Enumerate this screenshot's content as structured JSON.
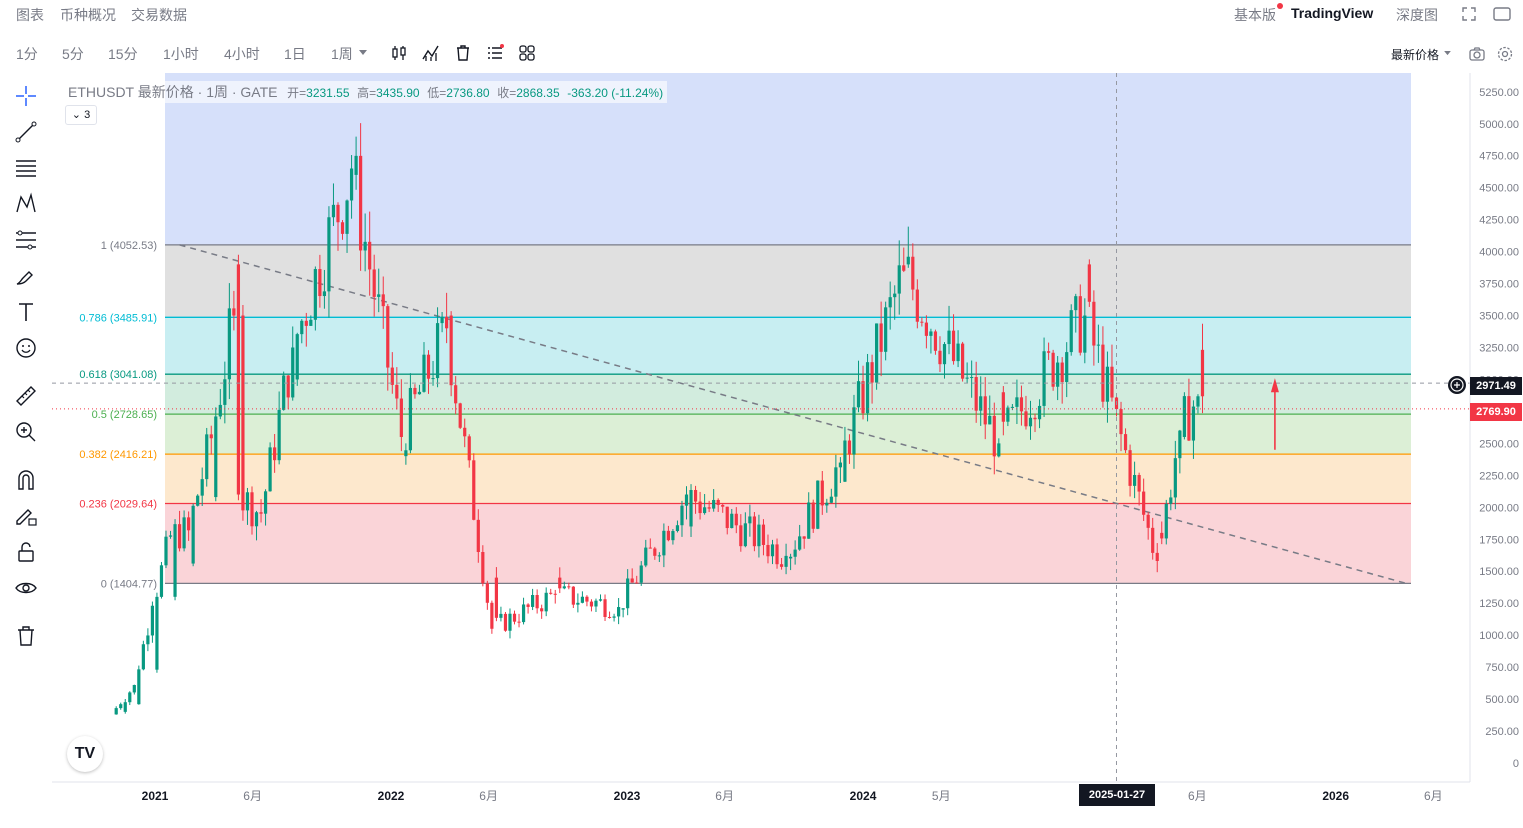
{
  "top_tabs": [
    {
      "label": "图表",
      "active": true
    },
    {
      "label": "币种概况",
      "active": false
    },
    {
      "label": "交易数据",
      "active": false
    }
  ],
  "top_right": {
    "basic": "基本版",
    "brand": "TradingView",
    "depth": "深度图"
  },
  "intervals": [
    {
      "label": "1分",
      "active": false
    },
    {
      "label": "5分",
      "active": false
    },
    {
      "label": "15分",
      "active": false
    },
    {
      "label": "1小时",
      "active": false
    },
    {
      "label": "4小时",
      "active": false
    },
    {
      "label": "1日",
      "active": false
    },
    {
      "label": "1周",
      "active": true
    }
  ],
  "price_mode": "最新价格",
  "legend": {
    "title": "ETHUSDT 最新价格 · 1周 · GATE",
    "open_label": "开=",
    "open": "3231.55",
    "high_label": "高=",
    "high": "3435.90",
    "low_label": "低=",
    "low": "2736.80",
    "close_label": "收=",
    "close": "2868.35",
    "change": "-363.20 (-11.24%)",
    "collapse_count": "3"
  },
  "crosshair": {
    "price_label": "2971.49",
    "date_label": "2025-01-27"
  },
  "last_price_label": "2769.90",
  "logo_text": "TV",
  "colors": {
    "up": "#089981",
    "down": "#f23645",
    "text_muted": "#787b86"
  },
  "chart_data": {
    "type": "candlestick",
    "symbol": "ETHUSDT",
    "interval": "1周",
    "exchange": "GATE",
    "y_ticks": [
      0,
      250,
      500,
      750,
      1000,
      1250,
      1500,
      1750,
      2000,
      2250,
      2500,
      2750,
      3000,
      3250,
      3500,
      3750,
      4000,
      4250,
      4500,
      4750,
      5000,
      5250
    ],
    "y_tick_labels": [
      "0",
      "250.00",
      "500.00",
      "750.00",
      "1000.00",
      "1250.00",
      "1500.00",
      "1750.00",
      "2000.00",
      "2250.00",
      "2500.00",
      "2750.00",
      "3000.00",
      "3250.00",
      "3500.00",
      "3750.00",
      "4000.00",
      "4250.00",
      "4500.00",
      "4750.00",
      "5000.00",
      "5250.00"
    ],
    "x_ticks": [
      {
        "label": "2021",
        "date": "2021-01-01"
      },
      {
        "label": "6月",
        "date": "2021-06-01"
      },
      {
        "label": "2022",
        "date": "2022-01-01"
      },
      {
        "label": "6月",
        "date": "2022-06-01"
      },
      {
        "label": "2023",
        "date": "2023-01-01"
      },
      {
        "label": "6月",
        "date": "2023-06-01"
      },
      {
        "label": "2024",
        "date": "2024-01-01"
      },
      {
        "label": "5月",
        "date": "2024-05-01"
      },
      {
        "label": "6月",
        "date": "2025-06-01"
      },
      {
        "label": "2026",
        "date": "2026-01-01"
      },
      {
        "label": "6月",
        "date": "2026-06-01"
      }
    ],
    "fib_levels": [
      {
        "label": "1 (4052.53)",
        "value": 4052.53,
        "color": "#787b86",
        "fill": "#e0e0e0"
      },
      {
        "label": "0.786 (3485.91)",
        "value": 3485.91,
        "color": "#00bcd4",
        "fill": "#c8eef2"
      },
      {
        "label": "0.618 (3041.08)",
        "value": 3041.08,
        "color": "#089981",
        "fill": "#d2ecde"
      },
      {
        "label": "0.5 (2728.65)",
        "value": 2728.65,
        "color": "#4caf50",
        "fill": "#dcefd6"
      },
      {
        "label": "0.382 (2416.21)",
        "value": 2416.21,
        "color": "#ff9800",
        "fill": "#fde8cd"
      },
      {
        "label": "0.236 (2029.64)",
        "value": 2029.64,
        "color": "#f23645",
        "fill": "#fad4d8"
      },
      {
        "label": "0 (1404.77)",
        "value": 1404.77,
        "color": "#787b86",
        "fill": ""
      }
    ],
    "fib_extension_fill": "#d6e0fa",
    "trendline": {
      "from": {
        "date": "2021-02-08",
        "value": 4052.53
      },
      "to": {
        "date": "2026-04-20",
        "value": 1404.77
      },
      "style": "dashed"
    },
    "last_price": 2769.9,
    "candles_weekly_approx": [
      {
        "date": "2020-11-02",
        "open": 380,
        "high": 420,
        "low": 360,
        "close": 400
      },
      {
        "date": "2020-11-16",
        "open": 400,
        "high": 480,
        "low": 390,
        "close": 460
      },
      {
        "date": "2020-12-07",
        "open": 460,
        "high": 640,
        "low": 440,
        "close": 610
      },
      {
        "date": "2021-01-04",
        "open": 730,
        "high": 1350,
        "low": 700,
        "close": 1230
      },
      {
        "date": "2021-02-01",
        "open": 1300,
        "high": 2050,
        "low": 1280,
        "close": 1780
      },
      {
        "date": "2021-03-01",
        "open": 1560,
        "high": 1950,
        "low": 1500,
        "close": 1820
      },
      {
        "date": "2021-04-05",
        "open": 2080,
        "high": 2600,
        "low": 1950,
        "close": 2540
      },
      {
        "date": "2021-05-10",
        "open": 3900,
        "high": 4380,
        "low": 3400,
        "close": 3500
      },
      {
        "date": "2021-05-17",
        "open": 3500,
        "high": 3600,
        "low": 1900,
        "close": 2100
      },
      {
        "date": "2021-06-21",
        "open": 1950,
        "high": 2100,
        "low": 1720,
        "close": 1950
      },
      {
        "date": "2021-08-09",
        "open": 3000,
        "high": 3300,
        "low": 2900,
        "close": 3250
      },
      {
        "date": "2021-11-08",
        "open": 4600,
        "high": 4870,
        "low": 4500,
        "close": 4650
      },
      {
        "date": "2022-01-24",
        "open": 2400,
        "high": 2700,
        "low": 2200,
        "close": 2550
      },
      {
        "date": "2022-04-04",
        "open": 3500,
        "high": 3580,
        "low": 3300,
        "close": 3400
      },
      {
        "date": "2022-06-13",
        "open": 1450,
        "high": 1550,
        "low": 880,
        "close": 1050
      },
      {
        "date": "2022-09-19",
        "open": 1450,
        "high": 1500,
        "low": 1280,
        "close": 1320
      },
      {
        "date": "2022-12-26",
        "open": 1200,
        "high": 1250,
        "low": 1150,
        "close": 1220
      },
      {
        "date": "2023-04-10",
        "open": 1850,
        "high": 2140,
        "low": 1800,
        "close": 2100
      },
      {
        "date": "2023-09-11",
        "open": 1600,
        "high": 1650,
        "low": 1530,
        "close": 1620
      },
      {
        "date": "2023-12-04",
        "open": 2200,
        "high": 2400,
        "low": 2150,
        "close": 2350
      },
      {
        "date": "2024-03-11",
        "open": 3900,
        "high": 4090,
        "low": 3700,
        "close": 3850
      },
      {
        "date": "2024-08-05",
        "open": 2900,
        "high": 2950,
        "low": 2120,
        "close": 2500
      },
      {
        "date": "2024-12-16",
        "open": 3900,
        "high": 4100,
        "low": 3400,
        "close": 3500
      },
      {
        "date": "2025-04-07",
        "open": 1800,
        "high": 1850,
        "low": 1380,
        "close": 1580
      },
      {
        "date": "2025-05-12",
        "open": 2550,
        "high": 2730,
        "low": 2400,
        "close": 2600
      },
      {
        "date": "2025-06-09",
        "open": 3231.55,
        "high": 3435.9,
        "low": 2736.8,
        "close": 2868.35
      }
    ]
  }
}
